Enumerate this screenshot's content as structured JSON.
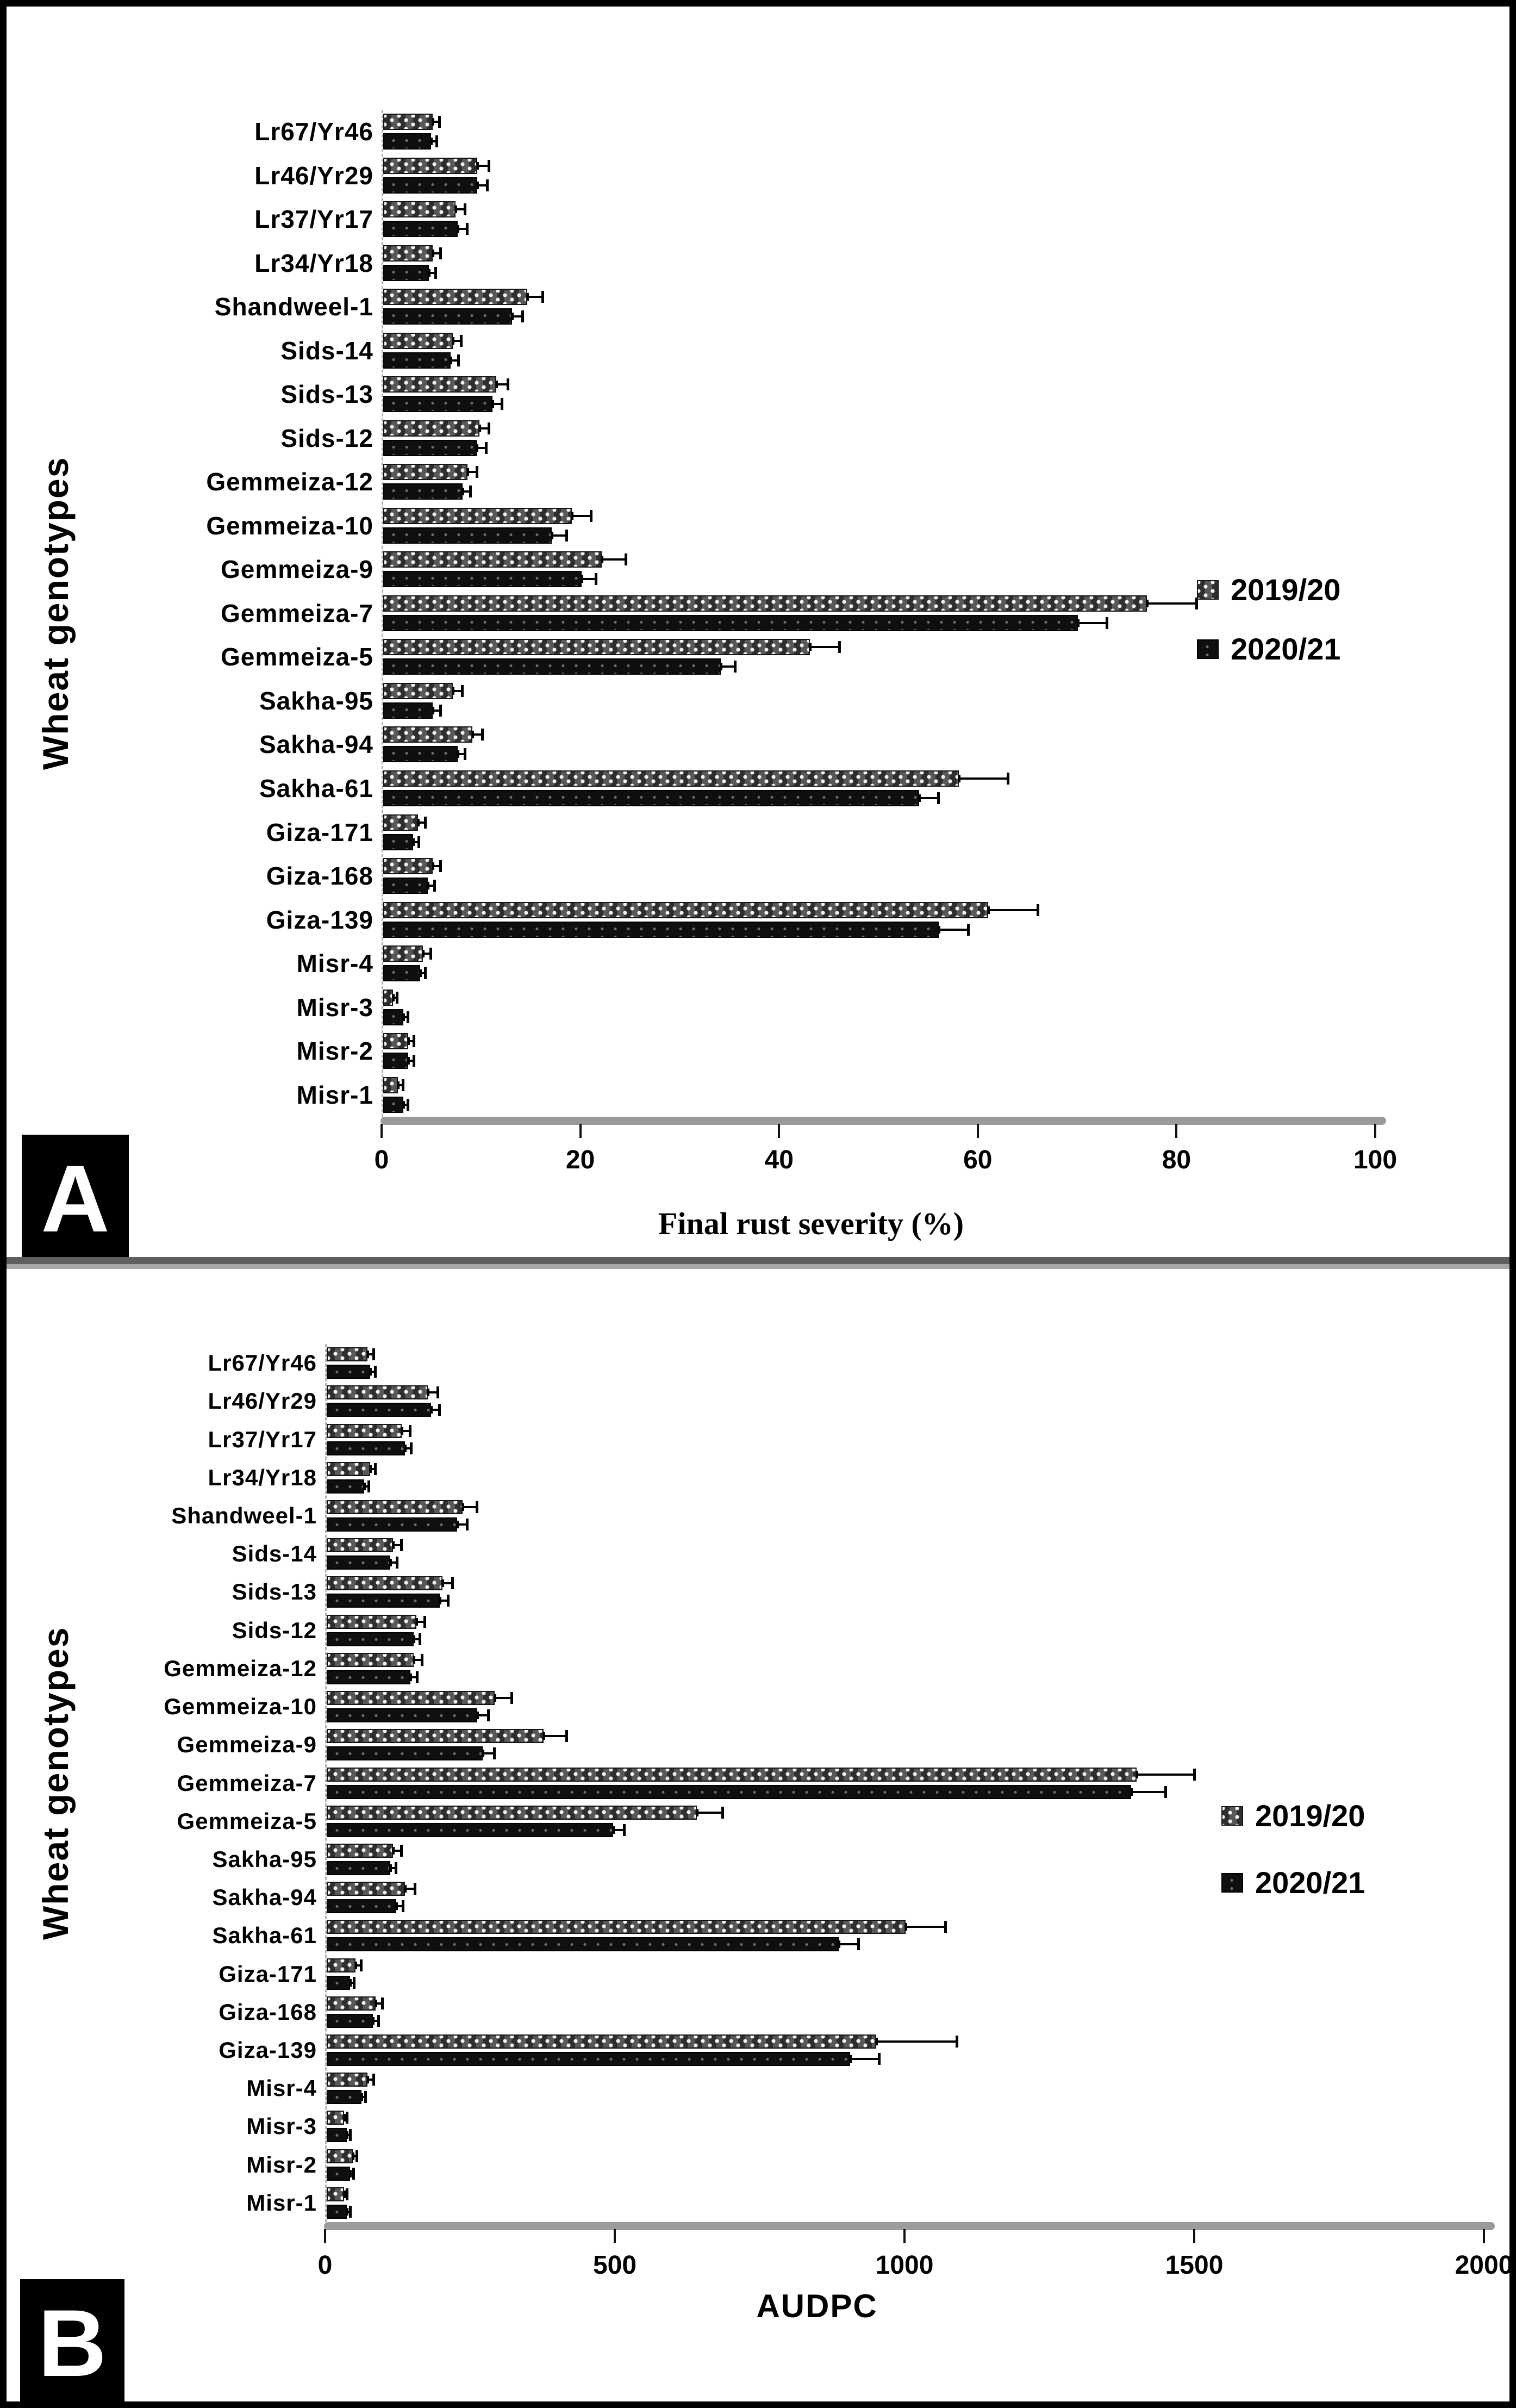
{
  "colors": {
    "bar_solid": "#0f0f0f",
    "bar_hatched_base": "#474747",
    "axis_baseline": "#9b9b9b",
    "separator": "#5f5f5f",
    "badge_bg": "#000000",
    "badge_text": "#ffffff",
    "background": "#ffffff",
    "frame": "#000000"
  },
  "chart_data": [
    {
      "id": "panel-a",
      "type": "bar",
      "orientation": "horizontal",
      "panel_label": "A",
      "ylabel": "Wheat genotypes",
      "xlabel": "Final rust severity (%)",
      "xlim": [
        0,
        100
      ],
      "xticks": [
        0,
        20,
        40,
        60,
        80,
        100
      ],
      "legend_position": "right",
      "grid": false,
      "categories": [
        "Lr67/Yr46",
        "Lr46/Yr29",
        "Lr37/Yr17",
        "Lr34/Yr18",
        "Shandweel-1",
        "Sids-14",
        "Sids-13",
        "Sids-12",
        "Gemmeiza-12",
        "Gemmeiza-10",
        "Gemmeiza-9",
        "Gemmeiza-7",
        "Gemmeiza-5",
        "Sakha-95",
        "Sakha-94",
        "Sakha-61",
        "Giza-171",
        "Giza-168",
        "Giza-139",
        "Misr-4",
        "Misr-3",
        "Misr-2",
        "Misr-1"
      ],
      "series": [
        {
          "name": "2019/20",
          "pattern": "hatched",
          "values": [
            5,
            9.5,
            7.3,
            5,
            14.5,
            7,
            11.4,
            9.7,
            8.5,
            19,
            22,
            77,
            43,
            7,
            9,
            58,
            3.5,
            5,
            61,
            4,
            1,
            2.5,
            1.5
          ],
          "errors": [
            0.7,
            1.2,
            1,
            0.8,
            1.6,
            0.9,
            1.2,
            1,
            1,
            2,
            2.5,
            5,
            3,
            1,
            1,
            5,
            0.8,
            0.8,
            5,
            0.8,
            0.4,
            0.6,
            0.5
          ]
        },
        {
          "name": "2020/21",
          "pattern": "solid",
          "values": [
            4.8,
            9.5,
            7.5,
            4.6,
            13,
            6.8,
            11,
            9.4,
            8,
            17,
            20,
            70,
            34,
            5,
            7.5,
            54,
            3,
            4.5,
            56,
            3.7,
            2,
            2.5,
            2
          ],
          "errors": [
            0.6,
            1,
            1,
            0.7,
            1.1,
            0.8,
            1,
            1,
            0.8,
            1.5,
            1.5,
            3,
            1.5,
            0.8,
            0.8,
            2,
            0.6,
            0.7,
            3,
            0.6,
            0.5,
            0.6,
            0.5
          ]
        }
      ]
    },
    {
      "id": "panel-b",
      "type": "bar",
      "orientation": "horizontal",
      "panel_label": "B",
      "ylabel": "Wheat genotypes",
      "xlabel": "AUDPC",
      "xlim": [
        0,
        2000
      ],
      "xticks": [
        0,
        500,
        1000,
        1500,
        2000
      ],
      "legend_position": "right",
      "grid": false,
      "categories": [
        "Lr67/Yr46",
        "Lr46/Yr29",
        "Lr37/Yr17",
        "Lr34/Yr18",
        "Shandweel-1",
        "Sids-14",
        "Sids-13",
        "Sids-12",
        "Gemmeiza-12",
        "Gemmeiza-10",
        "Gemmeiza-9",
        "Gemmeiza-7",
        "Gemmeiza-5",
        "Sakha-95",
        "Sakha-94",
        "Sakha-61",
        "Giza-171",
        "Giza-168",
        "Giza-139",
        "Misr-4",
        "Misr-3",
        "Misr-2",
        "Misr-1"
      ],
      "series": [
        {
          "name": "2019/20",
          "pattern": "hatched",
          "values": [
            70,
            175,
            130,
            75,
            235,
            115,
            200,
            155,
            150,
            290,
            375,
            1400,
            640,
            115,
            135,
            1000,
            50,
            85,
            950,
            70,
            30,
            45,
            30
          ],
          "errors": [
            12,
            18,
            15,
            10,
            25,
            15,
            18,
            15,
            15,
            30,
            40,
            100,
            45,
            15,
            18,
            70,
            10,
            12,
            140,
            12,
            6,
            8,
            6
          ]
        },
        {
          "name": "2020/21",
          "pattern": "solid",
          "values": [
            75,
            180,
            135,
            65,
            225,
            110,
            195,
            150,
            145,
            260,
            270,
            1390,
            495,
            110,
            120,
            885,
            40,
            80,
            905,
            60,
            35,
            40,
            35
          ],
          "errors": [
            10,
            15,
            12,
            8,
            18,
            12,
            15,
            12,
            12,
            20,
            20,
            60,
            20,
            10,
            12,
            35,
            8,
            10,
            50,
            8,
            6,
            7,
            6
          ]
        }
      ]
    }
  ]
}
